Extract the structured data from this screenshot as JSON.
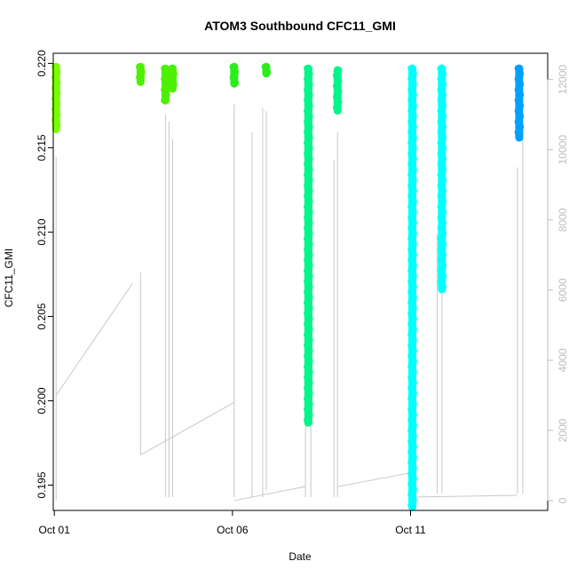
{
  "chart_data": {
    "type": "scatter",
    "title": "ATOM3 Southbound CFC11_GMI",
    "xlabel": "Date",
    "ylabel": "CFC11_GMI",
    "x_ticks": [
      "Oct 01",
      "Oct 06",
      "Oct 11"
    ],
    "x_tick_days": [
      1,
      6,
      11
    ],
    "xlim_days": [
      0.97,
      14.85
    ],
    "y_ticks": [
      "0.195",
      "0.200",
      "0.205",
      "0.210",
      "0.215",
      "0.220"
    ],
    "ylim": [
      0.1935,
      0.2206
    ],
    "y2_ticks": [
      "0",
      "2000",
      "4000",
      "6000",
      "8000",
      "10000",
      "12000"
    ],
    "y2lim": [
      -280,
      12750
    ],
    "y2_color": "#bdbdbd",
    "grid": false,
    "legend": "none",
    "series": [
      {
        "color": "#7cfc00",
        "points": [
          {
            "x": 1.05,
            "y_min": 0.2161,
            "y_max": 0.2198
          }
        ]
      },
      {
        "color": "#4cf000",
        "points": [
          {
            "x": 3.42,
            "y_min": 0.2189,
            "y_max": 0.2198
          },
          {
            "x": 4.12,
            "y_min": 0.2178,
            "y_max": 0.2197
          },
          {
            "x": 4.32,
            "y_min": 0.2185,
            "y_max": 0.2197
          }
        ]
      },
      {
        "color": "#2aee1a",
        "points": [
          {
            "x": 6.05,
            "y_min": 0.2188,
            "y_max": 0.2198
          },
          {
            "x": 6.95,
            "y_min": 0.2194,
            "y_max": 0.2198
          }
        ]
      },
      {
        "color": "#00f58a",
        "points": [
          {
            "x": 8.13,
            "y_min": 0.1987,
            "y_max": 0.2197
          },
          {
            "x": 8.95,
            "y_min": 0.2172,
            "y_max": 0.2196
          }
        ]
      },
      {
        "color": "#00ffff",
        "points": [
          {
            "x": 11.05,
            "y_min": 0.1937,
            "y_max": 0.2197
          },
          {
            "x": 11.88,
            "y_min": 0.2066,
            "y_max": 0.2197
          }
        ]
      },
      {
        "color": "#00a0ff",
        "points": [
          {
            "x": 14.05,
            "y_min": 0.2156,
            "y_max": 0.2197
          }
        ]
      }
    ]
  }
}
